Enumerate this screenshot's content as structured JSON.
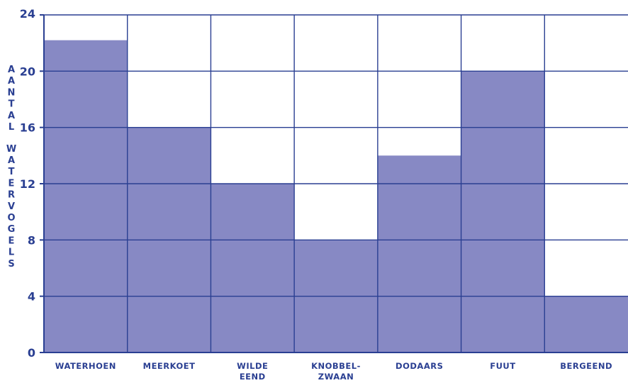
{
  "chart_data": {
    "type": "bar",
    "categories": [
      "WATERHOEN",
      "MEERKOET",
      "WILDE EEND",
      "KNOBBEL- ZWAAN",
      "DODAARS",
      "FUUT",
      "BERGEEND"
    ],
    "category_lines": [
      [
        "WATERHOEN"
      ],
      [
        "MEERKOET"
      ],
      [
        "WILDE",
        "EEND"
      ],
      [
        "KNOBBEL-",
        "ZWAAN"
      ],
      [
        "DODAARS"
      ],
      [
        "FUUT"
      ],
      [
        "BERGEEND"
      ]
    ],
    "values": [
      22.2,
      16,
      12,
      8,
      14,
      20,
      4
    ],
    "ylabel": "AANTAL WATERVOGELS",
    "ylabel_words": [
      "AANTAL",
      "WATERVOGELS"
    ],
    "yticks": [
      0,
      4,
      8,
      12,
      16,
      20,
      24
    ],
    "ylim": [
      0,
      24
    ],
    "grid": true,
    "bar_color": "#8789c4",
    "line_color": "#2a3f92"
  }
}
